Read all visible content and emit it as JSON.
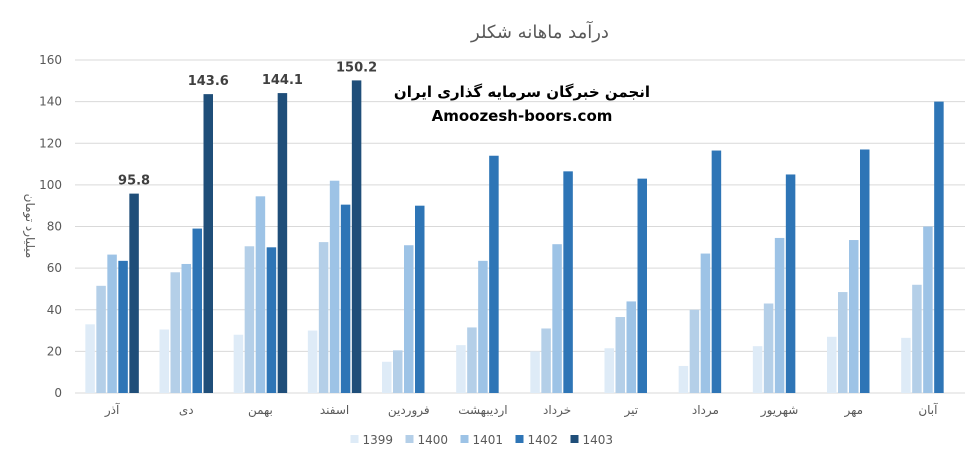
{
  "chart_data": {
    "type": "bar",
    "title": "درآمد ماهانه شکلر",
    "ylabel": "میلیارد تومان",
    "xlabel": "",
    "ylim": [
      0,
      160
    ],
    "yticks": [
      0,
      20,
      40,
      60,
      80,
      100,
      120,
      140,
      160
    ],
    "grid": true,
    "legend_position": "bottom",
    "categories": [
      "آذر",
      "دی",
      "بهمن",
      "اسفند",
      "فروردین",
      "اردیبهشت",
      "خرداد",
      "تیر",
      "مرداد",
      "شهریور",
      "مهر",
      "آبان"
    ],
    "series": [
      {
        "name": "1399",
        "color": "#deebf7",
        "values": [
          33,
          30.5,
          28,
          30,
          15,
          23,
          20,
          21.5,
          13,
          22.5,
          27,
          26.5
        ]
      },
      {
        "name": "1400",
        "color": "#b4cfe8",
        "values": [
          51.5,
          58,
          70.5,
          72.5,
          20.5,
          31.5,
          31,
          36.5,
          40,
          43,
          48.5,
          52
        ]
      },
      {
        "name": "1401",
        "color": "#9dc3e6",
        "values": [
          66.5,
          62,
          94.5,
          102,
          71,
          63.5,
          71.5,
          44,
          67,
          74.5,
          73.5,
          80
        ]
      },
      {
        "name": "1402",
        "color": "#2e75b6",
        "values": [
          63.5,
          79,
          70,
          90.5,
          90,
          114,
          106.5,
          103,
          116.5,
          105,
          117,
          140
        ]
      },
      {
        "name": "1403",
        "color": "#1f4e79",
        "values": [
          95.8,
          143.6,
          144.1,
          150.2,
          null,
          null,
          null,
          null,
          null,
          null,
          null,
          null
        ]
      }
    ],
    "data_labels": [
      {
        "series": "1403",
        "category": "آذر",
        "text": "95.8"
      },
      {
        "series": "1403",
        "category": "دی",
        "text": "143.6"
      },
      {
        "series": "1403",
        "category": "بهمن",
        "text": "144.1"
      },
      {
        "series": "1403",
        "category": "اسفند",
        "text": "150.2"
      }
    ],
    "annotations": [
      "انجمن خبرگان سرمایه گذاری ایران",
      "Amoozesh-boors.com"
    ]
  },
  "colors": {
    "grid": "#d9d9d9",
    "axis_text": "#595959",
    "title": "#595959",
    "label": "#404040",
    "watermark": "#000000"
  }
}
